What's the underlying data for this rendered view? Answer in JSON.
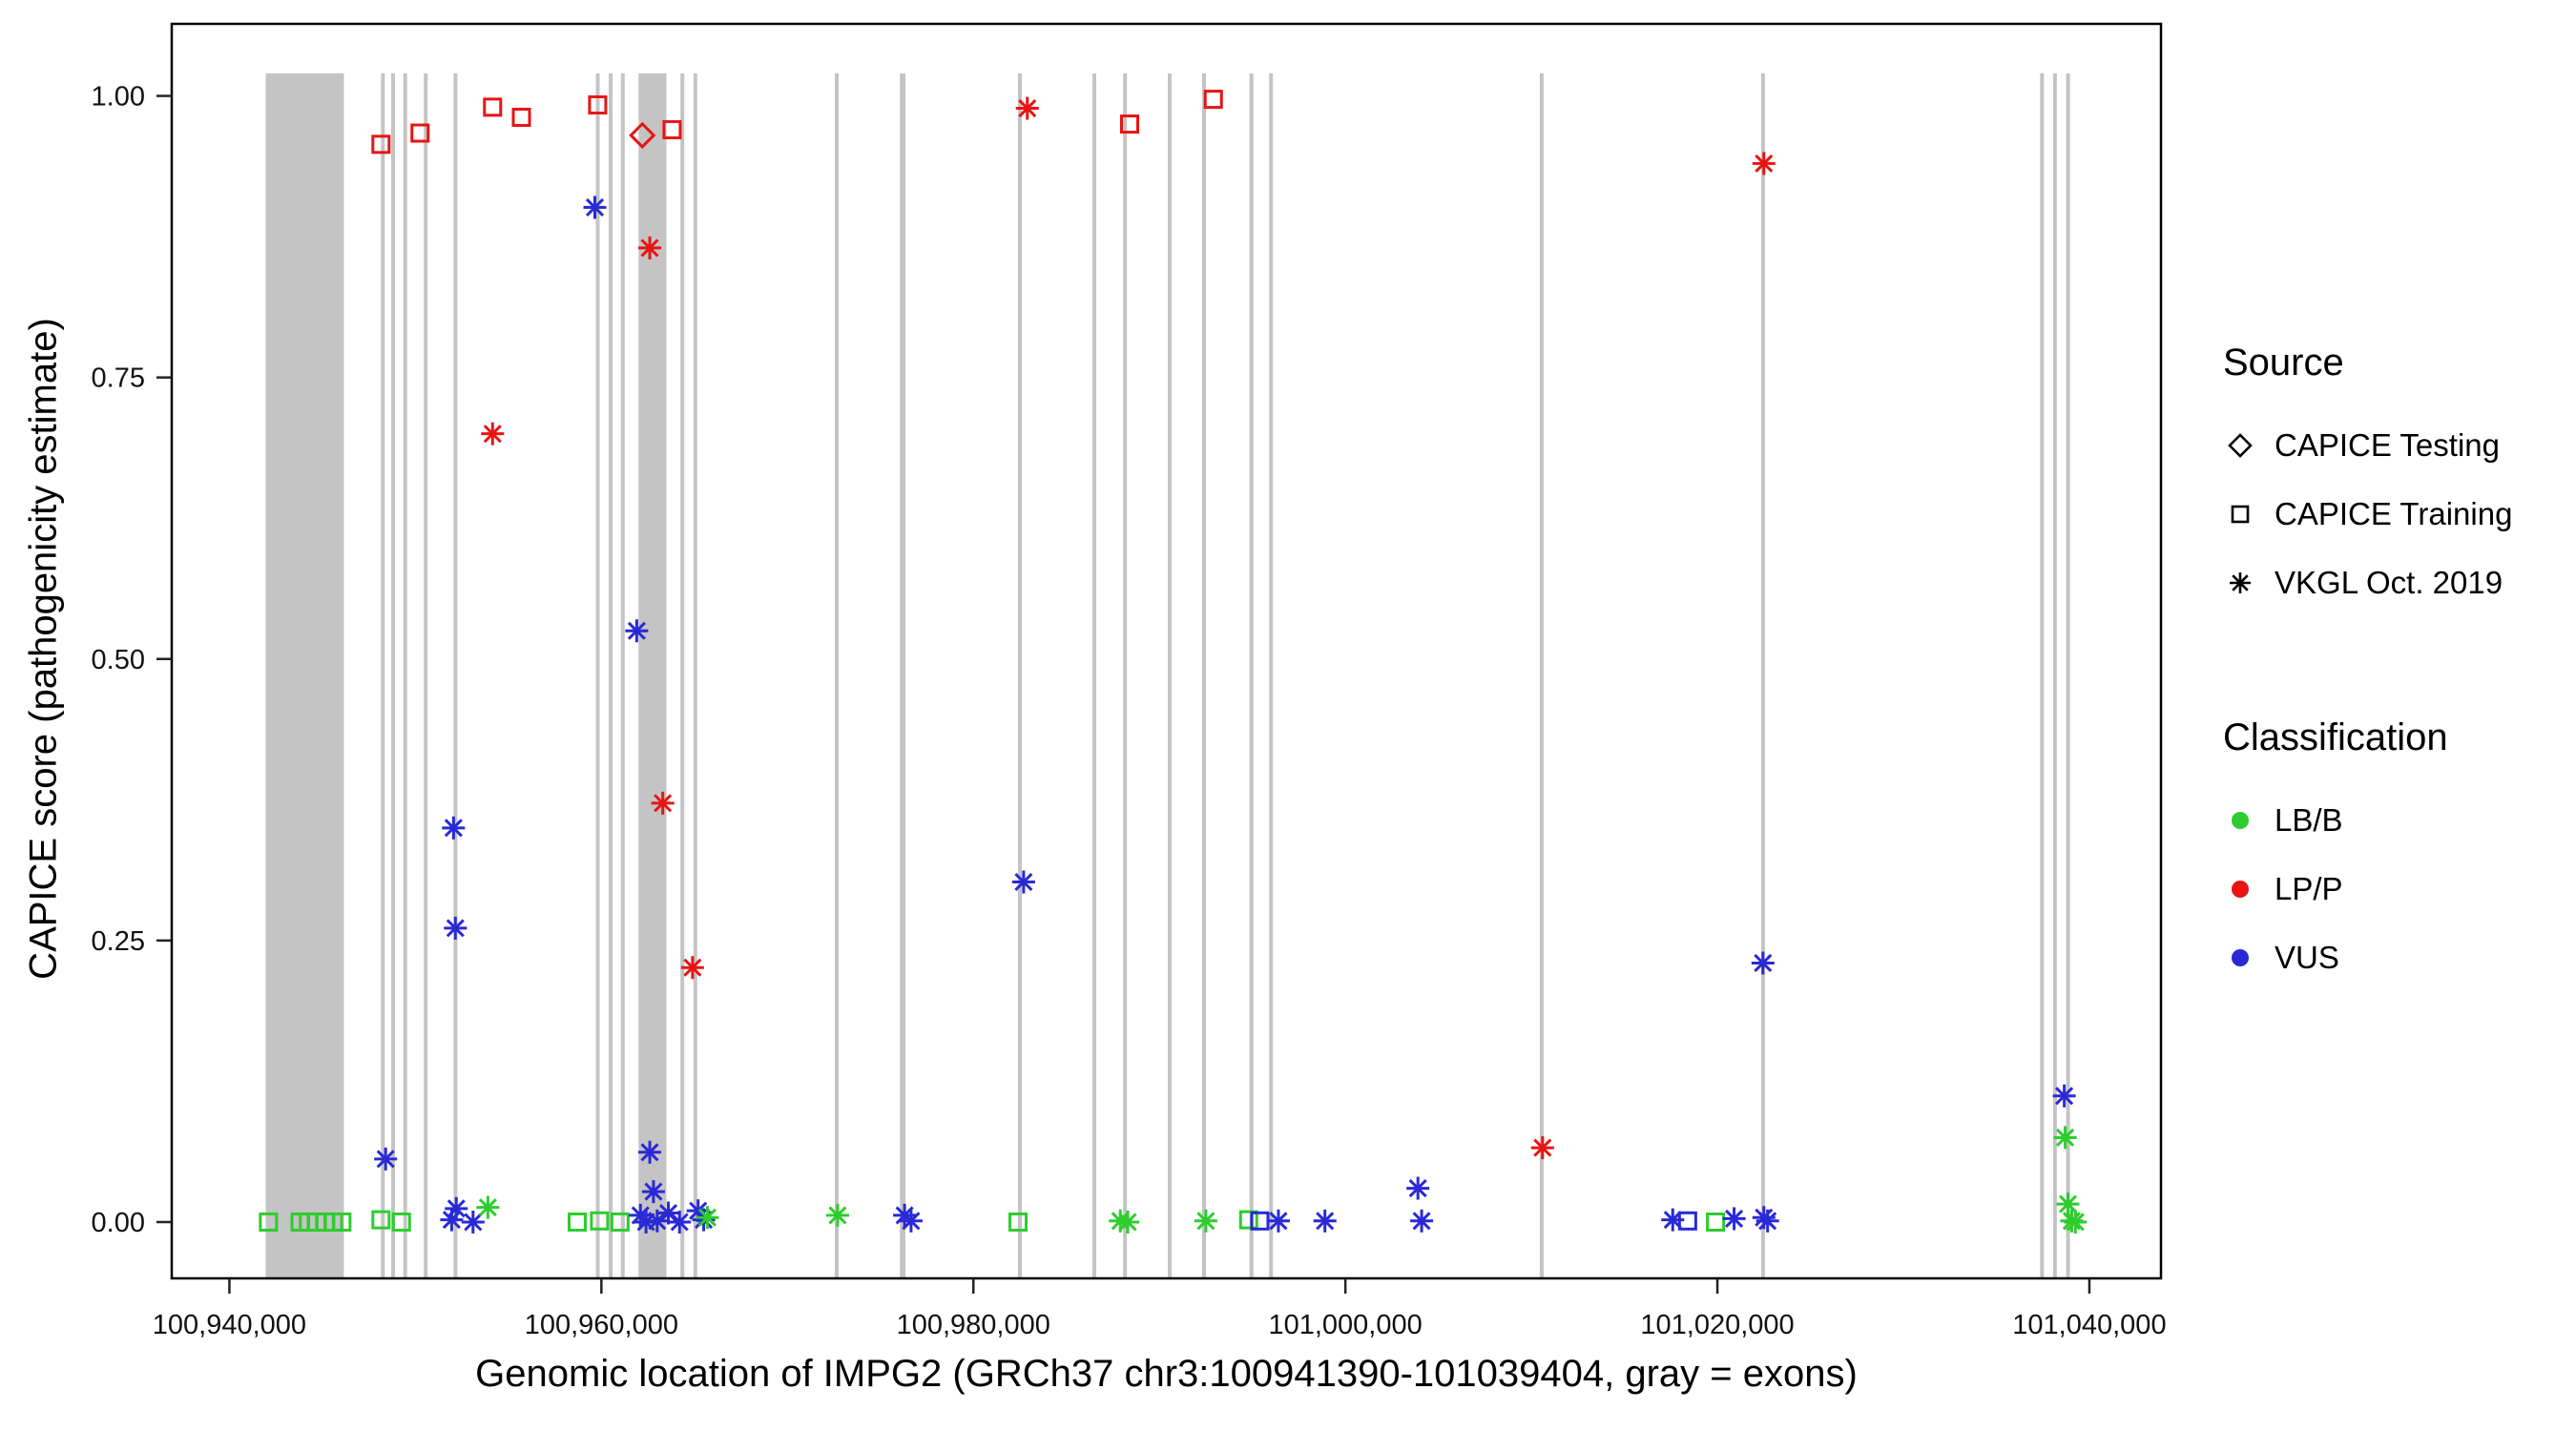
{
  "chart_data": {
    "type": "scatter",
    "title": "",
    "xlabel": "Genomic location of IMPG2 (GRCh37 chr3:100941390-101039404, gray = exons)",
    "ylabel": "CAPICE score (pathogenicity estimate)",
    "xlim": [
      100936900,
      101043850
    ],
    "ylim": [
      -0.05,
      1.064
    ],
    "x_ticks": [
      100940000,
      100960000,
      100980000,
      101000000,
      101020000,
      101040000
    ],
    "x_tick_labels": [
      "100,940,000",
      "100,960,000",
      "100,980,000",
      "101,000,000",
      "101,020,000",
      "101,040,000"
    ],
    "y_ticks": [
      0,
      0.25,
      0.5,
      0.75,
      1
    ],
    "y_tick_labels": [
      "0.00",
      "0.25",
      "0.50",
      "0.75",
      "1.00"
    ],
    "grid": false,
    "legend_position": "right",
    "exon_color": "#c4c4c4",
    "colors": {
      "LB/B": "#2ecc2e",
      "LP/P": "#e81414",
      "VUS": "#2929d6"
    },
    "marker_by_source": {
      "CAPICE Testing": "diamond",
      "CAPICE Training": "square",
      "VKGL Oct. 2019": "asterisk"
    },
    "exons": [
      [
        100941950,
        100946150
      ],
      [
        100948150,
        100948330
      ],
      [
        100948700,
        100948880
      ],
      [
        100949350,
        100949530
      ],
      [
        100950450,
        100950630
      ],
      [
        100952050,
        100952230
      ],
      [
        100959700,
        100959880
      ],
      [
        100960400,
        100960580
      ],
      [
        100961050,
        100961230
      ],
      [
        100962000,
        100963500
      ],
      [
        100964250,
        100964430
      ],
      [
        100964950,
        100965130
      ],
      [
        100972550,
        100972730
      ],
      [
        100976050,
        100976350
      ],
      [
        100982400,
        100982580
      ],
      [
        100986400,
        100986580
      ],
      [
        100988050,
        100988230
      ],
      [
        100990450,
        100990630
      ],
      [
        100992300,
        100992480
      ],
      [
        100994850,
        100995030
      ],
      [
        100995900,
        100996080
      ],
      [
        101010450,
        101010630
      ],
      [
        101022350,
        101022530
      ],
      [
        101037350,
        101037530
      ],
      [
        101038050,
        101038230
      ],
      [
        101038750,
        101038930
      ]
    ],
    "points": [
      {
        "x": 100962200,
        "y": 0.965,
        "source": "CAPICE Testing",
        "class": "LP/P"
      },
      {
        "x": 100948150,
        "y": 0.957,
        "source": "CAPICE Training",
        "class": "LP/P"
      },
      {
        "x": 100950250,
        "y": 0.967,
        "source": "CAPICE Training",
        "class": "LP/P"
      },
      {
        "x": 100954150,
        "y": 0.99,
        "source": "CAPICE Training",
        "class": "LP/P"
      },
      {
        "x": 100955700,
        "y": 0.981,
        "source": "CAPICE Training",
        "class": "LP/P"
      },
      {
        "x": 100959800,
        "y": 0.992,
        "source": "CAPICE Training",
        "class": "LP/P"
      },
      {
        "x": 100963800,
        "y": 0.97,
        "source": "CAPICE Training",
        "class": "LP/P"
      },
      {
        "x": 100988400,
        "y": 0.975,
        "source": "CAPICE Training",
        "class": "LP/P"
      },
      {
        "x": 100992900,
        "y": 0.997,
        "source": "CAPICE Training",
        "class": "LP/P"
      },
      {
        "x": 100942100,
        "y": 0.0,
        "source": "CAPICE Training",
        "class": "LB/B"
      },
      {
        "x": 100943800,
        "y": 0.0,
        "source": "CAPICE Training",
        "class": "LB/B"
      },
      {
        "x": 100944250,
        "y": 0.0,
        "source": "CAPICE Training",
        "class": "LB/B"
      },
      {
        "x": 100944700,
        "y": 0.0,
        "source": "CAPICE Training",
        "class": "LB/B"
      },
      {
        "x": 100945150,
        "y": 0.0,
        "source": "CAPICE Training",
        "class": "LB/B"
      },
      {
        "x": 100945600,
        "y": 0.0,
        "source": "CAPICE Training",
        "class": "LB/B"
      },
      {
        "x": 100946050,
        "y": 0.0,
        "source": "CAPICE Training",
        "class": "LB/B"
      },
      {
        "x": 100948150,
        "y": 0.002,
        "source": "CAPICE Training",
        "class": "LB/B"
      },
      {
        "x": 100949250,
        "y": 0.0,
        "source": "CAPICE Training",
        "class": "LB/B"
      },
      {
        "x": 100958700,
        "y": 0.0,
        "source": "CAPICE Training",
        "class": "LB/B"
      },
      {
        "x": 100959900,
        "y": 0.001,
        "source": "CAPICE Training",
        "class": "LB/B"
      },
      {
        "x": 100961000,
        "y": 0.0,
        "source": "CAPICE Training",
        "class": "LB/B"
      },
      {
        "x": 100982400,
        "y": 0.0,
        "source": "CAPICE Training",
        "class": "LB/B"
      },
      {
        "x": 100994800,
        "y": 0.002,
        "source": "CAPICE Training",
        "class": "LB/B"
      },
      {
        "x": 101019900,
        "y": 0.0,
        "source": "CAPICE Training",
        "class": "LB/B"
      },
      {
        "x": 100995400,
        "y": 0.001,
        "source": "CAPICE Training",
        "class": "VUS"
      },
      {
        "x": 101018400,
        "y": 0.001,
        "source": "CAPICE Training",
        "class": "VUS"
      },
      {
        "x": 100954150,
        "y": 0.7,
        "source": "VKGL Oct. 2019",
        "class": "LP/P"
      },
      {
        "x": 100962600,
        "y": 0.865,
        "source": "VKGL Oct. 2019",
        "class": "LP/P"
      },
      {
        "x": 100963300,
        "y": 0.372,
        "source": "VKGL Oct. 2019",
        "class": "LP/P"
      },
      {
        "x": 100964900,
        "y": 0.226,
        "source": "VKGL Oct. 2019",
        "class": "LP/P"
      },
      {
        "x": 100982900,
        "y": 0.989,
        "source": "VKGL Oct. 2019",
        "class": "LP/P"
      },
      {
        "x": 101010600,
        "y": 0.066,
        "source": "VKGL Oct. 2019",
        "class": "LP/P"
      },
      {
        "x": 101022500,
        "y": 0.94,
        "source": "VKGL Oct. 2019",
        "class": "LP/P"
      },
      {
        "x": 100948400,
        "y": 0.056,
        "source": "VKGL Oct. 2019",
        "class": "VUS"
      },
      {
        "x": 100952050,
        "y": 0.35,
        "source": "VKGL Oct. 2019",
        "class": "VUS"
      },
      {
        "x": 100952150,
        "y": 0.261,
        "source": "VKGL Oct. 2019",
        "class": "VUS"
      },
      {
        "x": 100952200,
        "y": 0.012,
        "source": "VKGL Oct. 2019",
        "class": "VUS"
      },
      {
        "x": 100951950,
        "y": 0.002,
        "source": "VKGL Oct. 2019",
        "class": "VUS"
      },
      {
        "x": 100953100,
        "y": 0.0,
        "source": "VKGL Oct. 2019",
        "class": "VUS"
      },
      {
        "x": 100959650,
        "y": 0.901,
        "source": "VKGL Oct. 2019",
        "class": "VUS"
      },
      {
        "x": 100961900,
        "y": 0.525,
        "source": "VKGL Oct. 2019",
        "class": "VUS"
      },
      {
        "x": 100962100,
        "y": 0.006,
        "source": "VKGL Oct. 2019",
        "class": "VUS"
      },
      {
        "x": 100962400,
        "y": 0.0,
        "source": "VKGL Oct. 2019",
        "class": "VUS"
      },
      {
        "x": 100962600,
        "y": 0.062,
        "source": "VKGL Oct. 2019",
        "class": "VUS"
      },
      {
        "x": 100962800,
        "y": 0.027,
        "source": "VKGL Oct. 2019",
        "class": "VUS"
      },
      {
        "x": 100963000,
        "y": 0.001,
        "source": "VKGL Oct. 2019",
        "class": "VUS"
      },
      {
        "x": 100963600,
        "y": 0.008,
        "source": "VKGL Oct. 2019",
        "class": "VUS"
      },
      {
        "x": 100964200,
        "y": 0.0,
        "source": "VKGL Oct. 2019",
        "class": "VUS"
      },
      {
        "x": 100965200,
        "y": 0.01,
        "source": "VKGL Oct. 2019",
        "class": "VUS"
      },
      {
        "x": 100965500,
        "y": 0.002,
        "source": "VKGL Oct. 2019",
        "class": "VUS"
      },
      {
        "x": 100976300,
        "y": 0.006,
        "source": "VKGL Oct. 2019",
        "class": "VUS"
      },
      {
        "x": 100976650,
        "y": 0.001,
        "source": "VKGL Oct. 2019",
        "class": "VUS"
      },
      {
        "x": 100982700,
        "y": 0.302,
        "source": "VKGL Oct. 2019",
        "class": "VUS"
      },
      {
        "x": 100996400,
        "y": 0.001,
        "source": "VKGL Oct. 2019",
        "class": "VUS"
      },
      {
        "x": 100998900,
        "y": 0.001,
        "source": "VKGL Oct. 2019",
        "class": "VUS"
      },
      {
        "x": 101003900,
        "y": 0.03,
        "source": "VKGL Oct. 2019",
        "class": "VUS"
      },
      {
        "x": 101004100,
        "y": 0.001,
        "source": "VKGL Oct. 2019",
        "class": "VUS"
      },
      {
        "x": 101017600,
        "y": 0.002,
        "source": "VKGL Oct. 2019",
        "class": "VUS"
      },
      {
        "x": 101020900,
        "y": 0.003,
        "source": "VKGL Oct. 2019",
        "class": "VUS"
      },
      {
        "x": 101022450,
        "y": 0.23,
        "source": "VKGL Oct. 2019",
        "class": "VUS"
      },
      {
        "x": 101022500,
        "y": 0.004,
        "source": "VKGL Oct. 2019",
        "class": "VUS"
      },
      {
        "x": 101022700,
        "y": 0.001,
        "source": "VKGL Oct. 2019",
        "class": "VUS"
      },
      {
        "x": 101038650,
        "y": 0.112,
        "source": "VKGL Oct. 2019",
        "class": "VUS"
      },
      {
        "x": 100953900,
        "y": 0.013,
        "source": "VKGL Oct. 2019",
        "class": "LB/B"
      },
      {
        "x": 100965700,
        "y": 0.004,
        "source": "VKGL Oct. 2019",
        "class": "LB/B"
      },
      {
        "x": 100972700,
        "y": 0.006,
        "source": "VKGL Oct. 2019",
        "class": "LB/B"
      },
      {
        "x": 100987900,
        "y": 0.001,
        "source": "VKGL Oct. 2019",
        "class": "LB/B"
      },
      {
        "x": 100988300,
        "y": 0.0,
        "source": "VKGL Oct. 2019",
        "class": "LB/B"
      },
      {
        "x": 100992500,
        "y": 0.001,
        "source": "VKGL Oct. 2019",
        "class": "LB/B"
      },
      {
        "x": 101038700,
        "y": 0.075,
        "source": "VKGL Oct. 2019",
        "class": "LB/B"
      },
      {
        "x": 101038850,
        "y": 0.016,
        "source": "VKGL Oct. 2019",
        "class": "LB/B"
      },
      {
        "x": 101039050,
        "y": 0.001,
        "source": "VKGL Oct. 2019",
        "class": "LB/B"
      },
      {
        "x": 101039250,
        "y": 0.0,
        "source": "VKGL Oct. 2019",
        "class": "LB/B"
      }
    ]
  },
  "legend": {
    "source_title": "Source",
    "source_items": [
      {
        "label": "CAPICE Testing",
        "marker": "diamond"
      },
      {
        "label": "CAPICE Training",
        "marker": "square"
      },
      {
        "label": "VKGL Oct. 2019",
        "marker": "asterisk"
      }
    ],
    "classification_title": "Classification",
    "classification_items": [
      {
        "label": "LB/B",
        "color": "#2ecc2e"
      },
      {
        "label": "LP/P",
        "color": "#e81414"
      },
      {
        "label": "VUS",
        "color": "#2929d6"
      }
    ]
  }
}
